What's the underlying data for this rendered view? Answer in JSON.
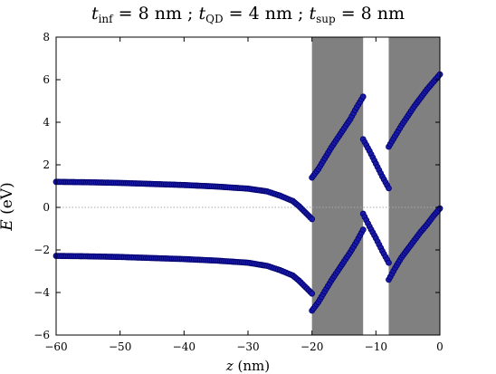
{
  "title": {
    "parts": [
      {
        "var": "t",
        "sub": "inf",
        "rest": " = 8 nm ; "
      },
      {
        "var": "t",
        "sub": "QD",
        "rest": " = 4 nm ; "
      },
      {
        "var": "t",
        "sub": "sup",
        "rest": " = 8 nm"
      }
    ]
  },
  "axes": {
    "xlabel_var": "z",
    "xlabel_unit": " (nm)",
    "ylabel_var": "E",
    "ylabel_unit": " (eV)"
  },
  "colors": {
    "shade": "#808080",
    "marker": "#1a1aa8",
    "marker_edge": "#00006e",
    "zero_line": "#aaaaaa"
  },
  "chart_data": {
    "type": "scatter",
    "xlim": [
      -60,
      0
    ],
    "ylim": [
      -6,
      8
    ],
    "xticks": [
      -60,
      -50,
      -40,
      -30,
      -20,
      -10,
      0
    ],
    "xtick_labels": [
      "−60",
      "−50",
      "−40",
      "−30",
      "−20",
      "−10",
      "0"
    ],
    "yticks": [
      -6,
      -4,
      -2,
      0,
      2,
      4,
      6,
      8
    ],
    "ytick_labels": [
      "−6",
      "−4",
      "−2",
      "0",
      "2",
      "4",
      "6",
      "8"
    ],
    "zero_line": 0,
    "shaded_regions": [
      [
        -20,
        -12
      ],
      [
        -8,
        0
      ]
    ],
    "series": [
      {
        "segment": "upper-bulk",
        "points": [
          [
            -60,
            1.2
          ],
          [
            -55,
            1.18
          ],
          [
            -50,
            1.15
          ],
          [
            -45,
            1.1
          ],
          [
            -40,
            1.05
          ],
          [
            -35,
            0.98
          ],
          [
            -30,
            0.88
          ],
          [
            -27,
            0.75
          ],
          [
            -25,
            0.55
          ],
          [
            -23,
            0.3
          ],
          [
            -22,
            0.05
          ],
          [
            -21,
            -0.25
          ],
          [
            -20,
            -0.55
          ]
        ]
      },
      {
        "segment": "lower-bulk",
        "points": [
          [
            -60,
            -2.28
          ],
          [
            -55,
            -2.3
          ],
          [
            -50,
            -2.33
          ],
          [
            -45,
            -2.38
          ],
          [
            -40,
            -2.43
          ],
          [
            -35,
            -2.5
          ],
          [
            -30,
            -2.6
          ],
          [
            -27,
            -2.75
          ],
          [
            -25,
            -2.95
          ],
          [
            -23,
            -3.2
          ],
          [
            -22,
            -3.45
          ],
          [
            -21,
            -3.75
          ],
          [
            -20,
            -4.05
          ]
        ]
      },
      {
        "segment": "upper-inf",
        "points": [
          [
            -20,
            1.4
          ],
          [
            -19,
            1.8
          ],
          [
            -18,
            2.3
          ],
          [
            -17,
            2.8
          ],
          [
            -16,
            3.25
          ],
          [
            -15,
            3.7
          ],
          [
            -14,
            4.15
          ],
          [
            -13,
            4.7
          ],
          [
            -12,
            5.2
          ]
        ]
      },
      {
        "segment": "lower-inf",
        "points": [
          [
            -20,
            -4.85
          ],
          [
            -19,
            -4.45
          ],
          [
            -18,
            -3.95
          ],
          [
            -17,
            -3.45
          ],
          [
            -16,
            -3.0
          ],
          [
            -15,
            -2.55
          ],
          [
            -14,
            -2.1
          ],
          [
            -13,
            -1.6
          ],
          [
            -12,
            -1.05
          ]
        ]
      },
      {
        "segment": "upper-qd",
        "points": [
          [
            -12,
            3.2
          ],
          [
            -11,
            2.65
          ],
          [
            -10,
            2.05
          ],
          [
            -9,
            1.45
          ],
          [
            -8,
            0.9
          ]
        ]
      },
      {
        "segment": "lower-qd",
        "points": [
          [
            -12,
            -0.3
          ],
          [
            -11,
            -0.9
          ],
          [
            -10,
            -1.45
          ],
          [
            -9,
            -2.05
          ],
          [
            -8,
            -2.6
          ]
        ]
      },
      {
        "segment": "upper-sup",
        "points": [
          [
            -8,
            2.85
          ],
          [
            -7,
            3.35
          ],
          [
            -6,
            3.85
          ],
          [
            -5,
            4.3
          ],
          [
            -4,
            4.75
          ],
          [
            -3,
            5.15
          ],
          [
            -2,
            5.55
          ],
          [
            -1,
            5.9
          ],
          [
            0,
            6.25
          ]
        ]
      },
      {
        "segment": "lower-sup",
        "points": [
          [
            -8,
            -3.4
          ],
          [
            -7,
            -2.85
          ],
          [
            -6,
            -2.35
          ],
          [
            -5,
            -1.95
          ],
          [
            -4,
            -1.55
          ],
          [
            -3,
            -1.15
          ],
          [
            -2,
            -0.8
          ],
          [
            -1,
            -0.4
          ],
          [
            0,
            -0.05
          ]
        ]
      }
    ]
  }
}
